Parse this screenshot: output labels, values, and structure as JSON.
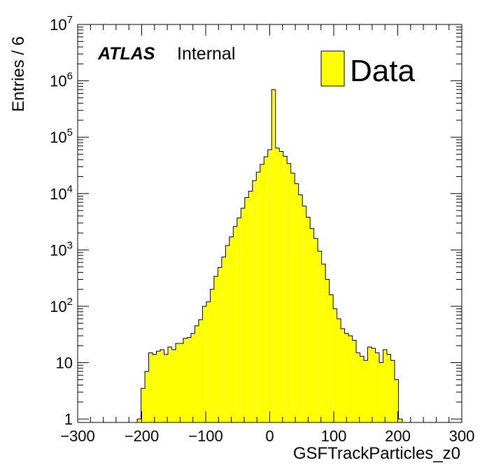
{
  "chart_data": {
    "type": "bar",
    "title": "",
    "xlabel": "GSFTrackParticles_z0",
    "ylabel": "Entries / 6",
    "xlim": [
      -300,
      300
    ],
    "ylim": [
      0.87,
      10000000
    ],
    "log_y": true,
    "bin_width": 6,
    "x_ticks": [
      "−300",
      "−200",
      "−100",
      "0",
      "100",
      "200",
      "300"
    ],
    "x_tick_values": [
      -300,
      -200,
      -100,
      0,
      100,
      200,
      300
    ],
    "y_ticks": [
      {
        "value": 1,
        "base": "1",
        "exp": ""
      },
      {
        "value": 10,
        "base": "10",
        "exp": ""
      },
      {
        "value": 100,
        "base": "10",
        "exp": "2"
      },
      {
        "value": 1000,
        "base": "10",
        "exp": "3"
      },
      {
        "value": 10000,
        "base": "10",
        "exp": "4"
      },
      {
        "value": 100000,
        "base": "10",
        "exp": "5"
      },
      {
        "value": 1000000,
        "base": "10",
        "exp": "6"
      },
      {
        "value": 10000000,
        "base": "10",
        "exp": "7"
      }
    ],
    "annotation_bold": "ATLAS",
    "annotation": "Internal",
    "legend": "Data",
    "legend_position": "top-right",
    "fill_color": "#ffff00",
    "line_color": "#000000",
    "bins": [
      {
        "x": -204,
        "y": 1
      },
      {
        "x": -198,
        "y": 3.5
      },
      {
        "x": -192,
        "y": 7
      },
      {
        "x": -186,
        "y": 15
      },
      {
        "x": -180,
        "y": 14
      },
      {
        "x": -174,
        "y": 16
      },
      {
        "x": -168,
        "y": 17
      },
      {
        "x": -162,
        "y": 14
      },
      {
        "x": -156,
        "y": 19
      },
      {
        "x": -150,
        "y": 17
      },
      {
        "x": -144,
        "y": 22
      },
      {
        "x": -138,
        "y": 22
      },
      {
        "x": -132,
        "y": 27
      },
      {
        "x": -126,
        "y": 28
      },
      {
        "x": -120,
        "y": 33
      },
      {
        "x": -114,
        "y": 45
      },
      {
        "x": -108,
        "y": 58
      },
      {
        "x": -102,
        "y": 100
      },
      {
        "x": -96,
        "y": 120
      },
      {
        "x": -90,
        "y": 200
      },
      {
        "x": -84,
        "y": 340
      },
      {
        "x": -78,
        "y": 490
      },
      {
        "x": -72,
        "y": 750
      },
      {
        "x": -66,
        "y": 1200
      },
      {
        "x": -60,
        "y": 1700
      },
      {
        "x": -54,
        "y": 2600
      },
      {
        "x": -48,
        "y": 3700
      },
      {
        "x": -42,
        "y": 5500
      },
      {
        "x": -36,
        "y": 8500
      },
      {
        "x": -30,
        "y": 11000
      },
      {
        "x": -24,
        "y": 17000
      },
      {
        "x": -18,
        "y": 24000
      },
      {
        "x": -12,
        "y": 33000
      },
      {
        "x": -6,
        "y": 45000
      },
      {
        "x": 0,
        "y": 60000
      },
      {
        "x": 6,
        "y": 700000
      },
      {
        "x": 12,
        "y": 64000
      },
      {
        "x": 18,
        "y": 56000
      },
      {
        "x": 24,
        "y": 46000
      },
      {
        "x": 30,
        "y": 34000
      },
      {
        "x": 36,
        "y": 23000
      },
      {
        "x": 42,
        "y": 15000
      },
      {
        "x": 48,
        "y": 9500
      },
      {
        "x": 54,
        "y": 6000
      },
      {
        "x": 60,
        "y": 3800
      },
      {
        "x": 66,
        "y": 2400
      },
      {
        "x": 72,
        "y": 1600
      },
      {
        "x": 78,
        "y": 950
      },
      {
        "x": 84,
        "y": 560
      },
      {
        "x": 90,
        "y": 300
      },
      {
        "x": 96,
        "y": 160
      },
      {
        "x": 102,
        "y": 90
      },
      {
        "x": 108,
        "y": 60
      },
      {
        "x": 114,
        "y": 40
      },
      {
        "x": 120,
        "y": 33
      },
      {
        "x": 126,
        "y": 30
      },
      {
        "x": 132,
        "y": 25
      },
      {
        "x": 138,
        "y": 15
      },
      {
        "x": 144,
        "y": 13
      },
      {
        "x": 150,
        "y": 11
      },
      {
        "x": 156,
        "y": 19
      },
      {
        "x": 162,
        "y": 18
      },
      {
        "x": 168,
        "y": 15
      },
      {
        "x": 174,
        "y": 10
      },
      {
        "x": 180,
        "y": 17
      },
      {
        "x": 186,
        "y": 14
      },
      {
        "x": 192,
        "y": 11
      },
      {
        "x": 198,
        "y": 5
      },
      {
        "x": 204,
        "y": 1
      }
    ]
  }
}
